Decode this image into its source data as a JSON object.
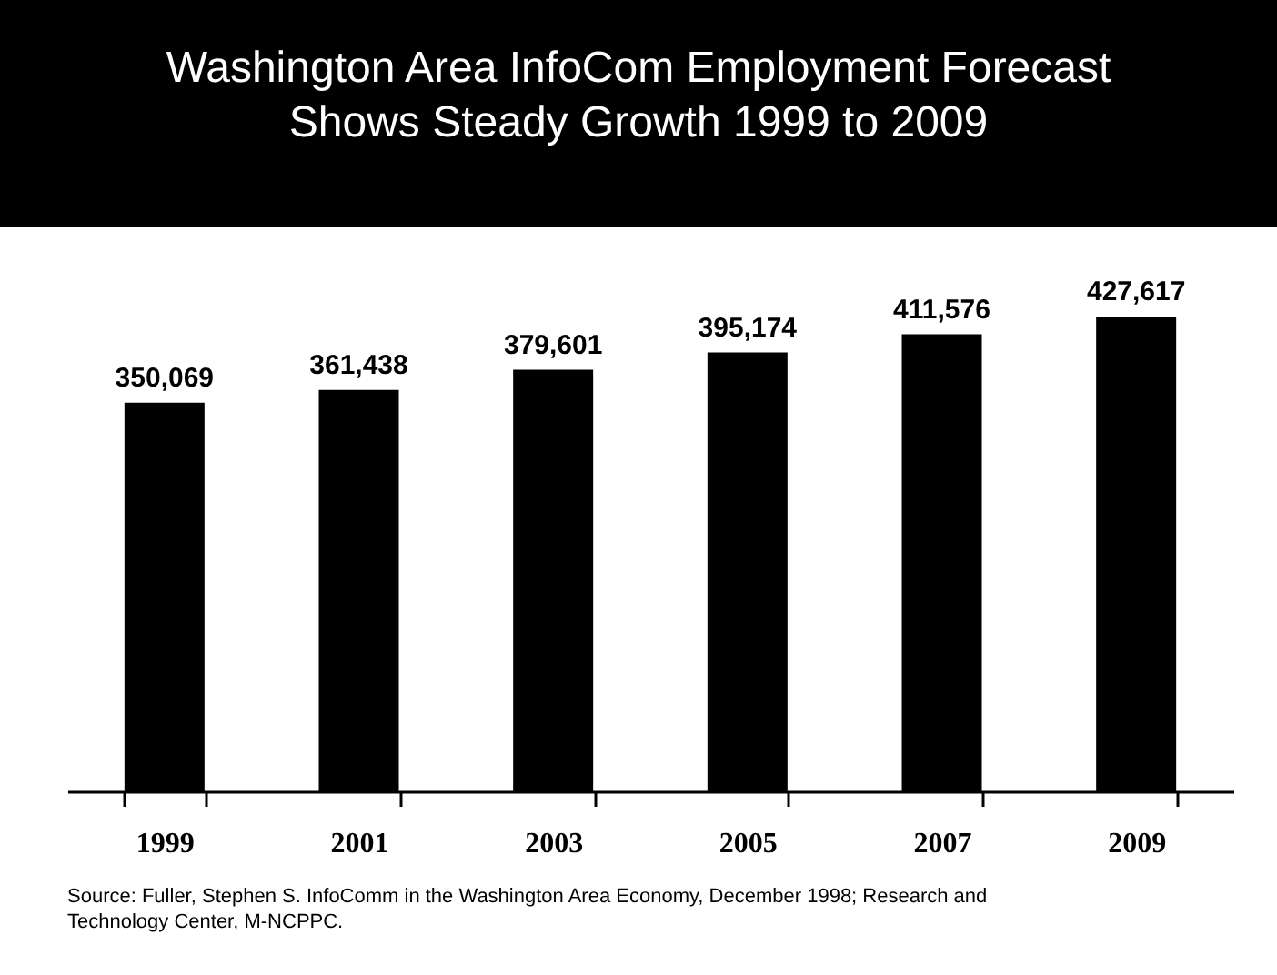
{
  "chart_data": {
    "type": "bar",
    "title": "Washington Area InfoCom Employment Forecast\nShows Steady Growth 1999 to 2009",
    "categories": [
      "1999",
      "2001",
      "2003",
      "2005",
      "2007",
      "2009"
    ],
    "values": [
      350069,
      361438,
      379601,
      395174,
      411576,
      427617
    ],
    "value_labels": [
      "350,069",
      "361,438",
      "379,601",
      "395,174",
      "411,576",
      "427,617"
    ],
    "color": "#000000",
    "grid": false,
    "annotations": [
      "Source: Fuller, Stephen S. InfoComm in the Washington Area Economy, December 1998; Research and Technology Center, M-NCPPC."
    ]
  }
}
